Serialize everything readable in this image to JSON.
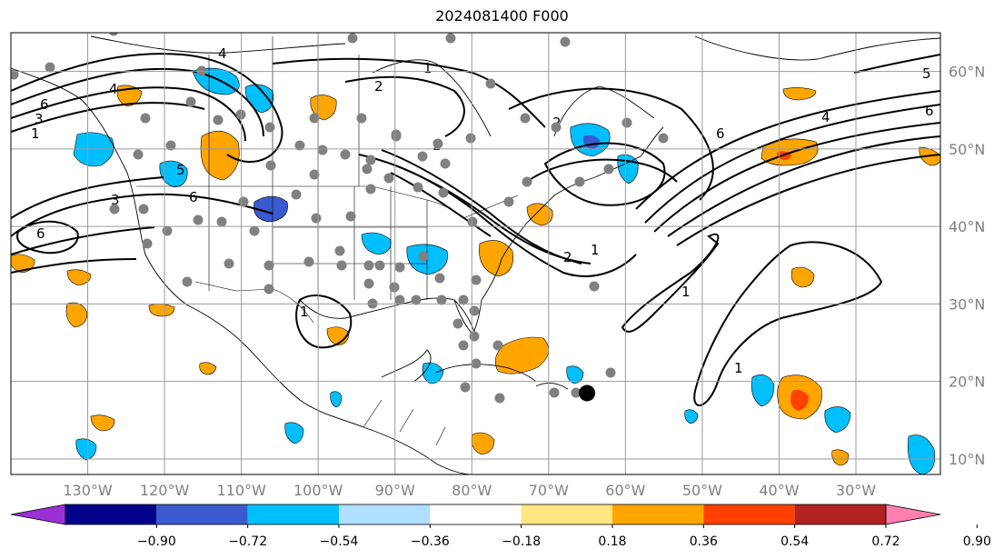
{
  "title": "2024081400 F000",
  "map": {
    "lon_range": [
      -140,
      -19
    ],
    "lat_range": [
      8,
      65
    ],
    "lon_ticks": [
      {
        "lon": -130,
        "label": "130°W"
      },
      {
        "lon": -120,
        "label": "120°W"
      },
      {
        "lon": -110,
        "label": "110°W"
      },
      {
        "lon": -100,
        "label": "100°W"
      },
      {
        "lon": -90,
        "label": "90°W"
      },
      {
        "lon": -80,
        "label": "80°W"
      },
      {
        "lon": -70,
        "label": "70°W"
      },
      {
        "lon": -60,
        "label": "60°W"
      },
      {
        "lon": -50,
        "label": "50°W"
      },
      {
        "lon": -40,
        "label": "40°W"
      },
      {
        "lon": -30,
        "label": "30°W"
      }
    ],
    "lat_ticks": [
      {
        "lat": 60,
        "label": "60°N"
      },
      {
        "lat": 50,
        "label": "50°N"
      },
      {
        "lat": 40,
        "label": "40°N"
      },
      {
        "lat": 30,
        "label": "30°N"
      },
      {
        "lat": 20,
        "label": "20°N"
      },
      {
        "lat": 10,
        "label": "10°N"
      }
    ],
    "grid": true,
    "contour_labels": [
      "1",
      "2",
      "3",
      "4",
      "5",
      "6"
    ]
  },
  "colorbar": {
    "colors": [
      "#9b30d6",
      "#00008b",
      "#3a5bd0",
      "#00bfff",
      "#b0e0ff",
      "#ffffff",
      "#ffe680",
      "#ffa500",
      "#ff4000",
      "#b22222",
      "#ff7fb0"
    ],
    "ticks": [
      "−0.90",
      "−0.72",
      "−0.54",
      "−0.36",
      "−0.18",
      "0.18",
      "0.36",
      "0.54",
      "0.72",
      "0.90"
    ]
  },
  "stations_color": "#808080",
  "marker": {
    "lon": -65,
    "lat": 18.5,
    "color": "#000000"
  }
}
